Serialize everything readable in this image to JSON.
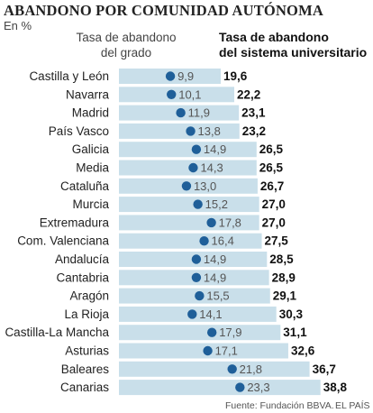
{
  "header": {
    "title": "ABANDONO POR COMUNIDAD AUTÓNOMA",
    "unit": "En %"
  },
  "legend": {
    "grade_line1": "Tasa de abandono",
    "grade_line2": "del grado",
    "system_line1": "Tasa de abandono",
    "system_line2": "del sistema universitario"
  },
  "footer": {
    "source": "Fuente: Fundación BBVA.",
    "credit": "EL PAÍS"
  },
  "colors": {
    "bar": "#c9dfea",
    "dot": "#1f5f99"
  },
  "chart_data": {
    "type": "bar",
    "categories": [
      "Castilla y León",
      "Navarra",
      "Madrid",
      "País Vasco",
      "Galicia",
      "Media",
      "Cataluña",
      "Murcia",
      "Extremadura",
      "Com. Valenciana",
      "Andalucía",
      "Cantabria",
      "Aragón",
      "La Rioja",
      "Castilla-La Mancha",
      "Asturias",
      "Baleares",
      "Canarias"
    ],
    "series": [
      {
        "name": "Tasa de abandono del sistema universitario",
        "mark": "bar",
        "values": [
          19.6,
          22.2,
          23.1,
          23.2,
          26.5,
          26.5,
          26.7,
          27.0,
          27.0,
          27.5,
          28.5,
          28.9,
          29.1,
          30.3,
          31.1,
          32.6,
          36.7,
          38.8
        ],
        "labels": [
          "19,6",
          "22,2",
          "23,1",
          "23,2",
          "26,5",
          "26,5",
          "26,7",
          "27,0",
          "27,0",
          "27,5",
          "28,5",
          "28,9",
          "29,1",
          "30,3",
          "31,1",
          "32,6",
          "36,7",
          "38,8"
        ]
      },
      {
        "name": "Tasa de abandono del grado",
        "mark": "dot",
        "values": [
          9.9,
          10.1,
          11.9,
          13.8,
          14.9,
          14.3,
          13.0,
          15.2,
          17.8,
          16.4,
          14.9,
          14.9,
          15.5,
          14.1,
          17.9,
          17.1,
          21.8,
          23.3
        ],
        "labels": [
          "9,9",
          "10,1",
          "11,9",
          "13,8",
          "14,9",
          "14,3",
          "13,0",
          "15,2",
          "17,8",
          "16,4",
          "14,9",
          "14,9",
          "15,5",
          "14,1",
          "17,9",
          "17,1",
          "21,8",
          "23,3"
        ]
      }
    ],
    "xlim": [
      0,
      38.8
    ]
  }
}
